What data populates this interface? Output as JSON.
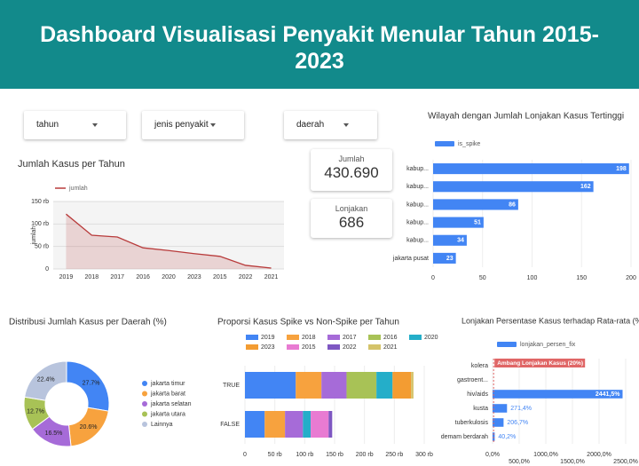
{
  "header": {
    "title": "Dashboard Visualisasi Penyakit Menular Tahun 2015-2023"
  },
  "filters": [
    "tahun",
    "jenis penyakit",
    "daerah"
  ],
  "scorecards": [
    {
      "label": "Jumlah",
      "value": "430.690"
    },
    {
      "label": "Lonjakan",
      "value": "686"
    }
  ],
  "chart_data": [
    {
      "type": "line",
      "title": "Jumlah Kasus per Tahun",
      "y_label": "jumlah",
      "categories": [
        "2019",
        "2018",
        "2017",
        "2016",
        "2020",
        "2023",
        "2015",
        "2022",
        "2021"
      ],
      "series": [
        {
          "name": "jumlah",
          "color": "#b83b3b",
          "values": [
            122000,
            75000,
            71000,
            47000,
            41000,
            34000,
            28000,
            8000,
            2000
          ]
        }
      ],
      "ylim": [
        0,
        150000
      ],
      "yticks": [
        0,
        {
          "value": 50000,
          "label": "50 rb"
        },
        {
          "value": 100000,
          "label": "100 rb"
        },
        {
          "value": 150000,
          "label": "150 rb"
        }
      ],
      "grid": true
    },
    {
      "type": "hbar",
      "title": "Wilayah dengan Jumlah Lonjakan Kasus Tertinggi",
      "categories": [
        "kabup...",
        "kabup...",
        "kabup...",
        "kabup...",
        "kabup...",
        "jakarta pusat"
      ],
      "series": [
        {
          "name": "is_spike",
          "color": "#4285f4",
          "values": [
            198,
            162,
            86,
            51,
            34,
            23
          ]
        }
      ],
      "xlim": [
        0,
        200
      ],
      "xticks": [
        0,
        50,
        100,
        150,
        200
      ],
      "grid": true
    },
    {
      "type": "pie",
      "title": "Distribusi Jumlah Kasus per Daerah (%)",
      "donut": true,
      "categories": [
        "jakarta timur",
        "jakarta barat",
        "jakarta selatan",
        "jakarta utara",
        "Lainnya"
      ],
      "values": [
        27.7,
        20.6,
        16.5,
        12.7,
        22.4
      ],
      "value_labels": [
        "27.7%",
        "20.6%",
        "16.5%",
        "12.7%",
        "22.4%"
      ],
      "colors": [
        "#4285f4",
        "#f7a23e",
        "#a66bd8",
        "#a8c256",
        "#b8c4dd"
      ]
    },
    {
      "type": "stacked_hbar",
      "title": "Proporsi Kasus Spike vs Non-Spike per Tahun",
      "categories": [
        "TRUE",
        "FALSE"
      ],
      "series": [
        {
          "name": "2019",
          "color": "#4285f4",
          "values": [
            85000,
            33000
          ]
        },
        {
          "name": "2018",
          "color": "#f7a23e",
          "values": [
            43000,
            34000
          ]
        },
        {
          "name": "2017",
          "color": "#a66bd8",
          "values": [
            42000,
            30000
          ]
        },
        {
          "name": "2016",
          "color": "#a8c256",
          "values": [
            50000,
            0
          ]
        },
        {
          "name": "2020",
          "color": "#24aec9",
          "values": [
            27000,
            13000
          ]
        },
        {
          "name": "2023",
          "color": "#f39c32",
          "values": [
            31000,
            0
          ]
        },
        {
          "name": "2015",
          "color": "#e87bd2",
          "values": [
            0,
            30000
          ]
        },
        {
          "name": "2022",
          "color": "#7e57c2",
          "values": [
            0,
            6000
          ]
        },
        {
          "name": "2021",
          "color": "#d4c36a",
          "values": [
            4000,
            0
          ]
        }
      ],
      "xlim": [
        0,
        300000
      ],
      "xticks": [
        0,
        {
          "value": 50000,
          "label": "50 rb"
        },
        {
          "value": 100000,
          "label": "100 rb"
        },
        {
          "value": 150000,
          "label": "150 rb"
        },
        {
          "value": 200000,
          "label": "200 rb"
        },
        {
          "value": 250000,
          "label": "250 rb"
        },
        {
          "value": 300000,
          "label": "300 rb"
        }
      ]
    },
    {
      "type": "hbar",
      "title": "Lonjakan Persentase Kasus terhadap Rata-rata (%)",
      "categories": [
        "kolera",
        "gastroent...",
        "hiv/aids",
        "kusta",
        "tuberkulosis",
        "demam berdarah"
      ],
      "series": [
        {
          "name": "lonjakan_persen_fix",
          "color": "#4285f4",
          "values": [
            null,
            null,
            2441.5,
            271.4,
            206.7,
            40.2
          ],
          "value_labels": [
            null,
            null,
            "2441,5%",
            "271,4%",
            "206,7%",
            "40,2%"
          ]
        }
      ],
      "annotation": {
        "text": "Ambang Lonjakan Kasus (20%)",
        "value": 20
      },
      "xlim": [
        0,
        2500
      ],
      "xticks": [
        {
          "value": 0,
          "label": "0,0%"
        },
        {
          "value": 500,
          "label": "500,0%"
        },
        {
          "value": 1000,
          "label": "1000,0%"
        },
        {
          "value": 1500,
          "label": "1500,0%"
        },
        {
          "value": 2000,
          "label": "2000,0%"
        },
        {
          "value": 2500,
          "label": "2500,0%"
        }
      ]
    }
  ]
}
